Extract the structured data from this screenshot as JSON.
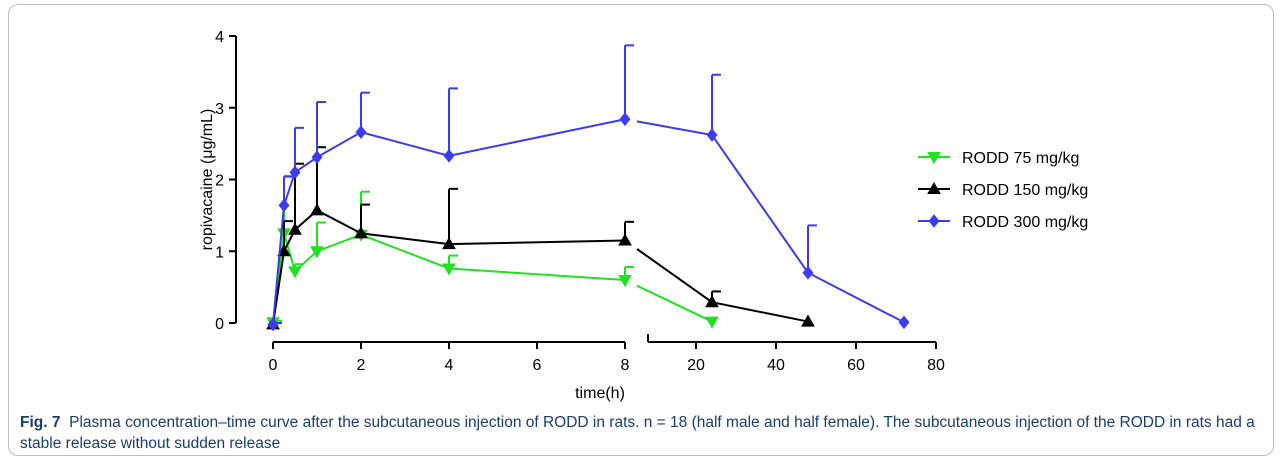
{
  "chart_data": {
    "type": "line",
    "title": "",
    "xlabel": "time(h)",
    "ylabel": "ropivacaine (μg/mL)",
    "ylim": [
      0,
      4
    ],
    "x_segments": [
      {
        "range": [
          0,
          8
        ],
        "ticks": [
          0,
          2,
          4,
          6,
          8
        ]
      },
      {
        "range": [
          8,
          80
        ],
        "ticks": [
          20,
          40,
          60,
          80
        ]
      }
    ],
    "y_ticks": [
      0,
      1,
      2,
      3,
      4
    ],
    "grid": false,
    "legend_position": "right",
    "series": [
      {
        "name": "RODD  75 mg/kg",
        "color": "#22e022",
        "marker": "triangle-down",
        "x": [
          0,
          0.25,
          0.5,
          1,
          2,
          4,
          8,
          24
        ],
        "y": [
          0.01,
          1.25,
          0.72,
          1.0,
          1.23,
          0.76,
          0.6,
          0.02
        ],
        "error": [
          0.02,
          0.8,
          0.1,
          0.4,
          0.6,
          0.18,
          0.18,
          0
        ]
      },
      {
        "name": "RODD  150 mg/kg",
        "color": "#000000",
        "marker": "triangle-up",
        "x": [
          0,
          0.25,
          0.5,
          1,
          2,
          4,
          8,
          24,
          48
        ],
        "y": [
          -0.02,
          1.0,
          1.3,
          1.57,
          1.25,
          1.1,
          1.15,
          0.29,
          0.02
        ],
        "error": [
          0.02,
          0.42,
          0.92,
          0.88,
          0.4,
          0.77,
          0.26,
          0.15,
          0
        ]
      },
      {
        "name": "RODD  300 mg/kg",
        "color": "#3b3bef",
        "marker": "diamond",
        "x": [
          0,
          0.25,
          0.5,
          1,
          2,
          4,
          8,
          24,
          48,
          72
        ],
        "y": [
          -0.02,
          1.64,
          2.1,
          2.31,
          2.66,
          2.33,
          2.84,
          2.62,
          0.7,
          0.01
        ],
        "error": [
          0.02,
          0.4,
          0.62,
          0.77,
          0.55,
          0.94,
          1.03,
          0.84,
          0.66,
          0
        ]
      }
    ]
  },
  "caption": {
    "label": "Fig. 7",
    "text": "Plasma concentration–time curve after the subcutaneous injection of RODD in rats. n = 18 (half male and half female). The subcutaneous injection of the RODD in rats had a stable release without sudden release"
  }
}
